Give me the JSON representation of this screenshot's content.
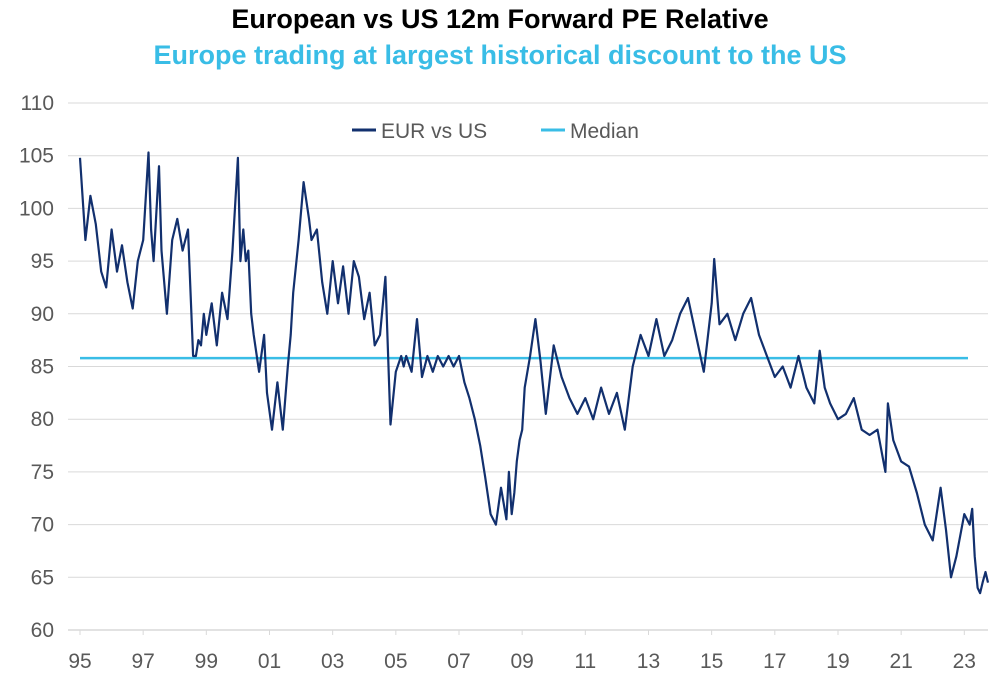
{
  "colors": {
    "series": "#12306e",
    "median": "#39bde6",
    "subtitle": "#39bde6",
    "grid": "#d9d9d9",
    "axis_text": "#595959"
  },
  "chart_data": {
    "type": "line",
    "title": "European vs US 12m Forward PE Relative",
    "subtitle": "Europe trading at largest historical discount to the US",
    "xlabel": "",
    "ylabel": "",
    "xlim": [
      1995,
      2023.75
    ],
    "ylim": [
      60,
      110
    ],
    "x_ticks": [
      "95",
      "97",
      "99",
      "01",
      "03",
      "05",
      "07",
      "09",
      "11",
      "13",
      "15",
      "17",
      "19",
      "21",
      "23"
    ],
    "y_ticks": [
      "60",
      "65",
      "70",
      "75",
      "80",
      "85",
      "90",
      "95",
      "100",
      "105",
      "110"
    ],
    "grid": "horizontal",
    "legend_position": "top-center",
    "series": [
      {
        "name": "EUR vs US",
        "x": [
          1995.0,
          1995.17,
          1995.33,
          1995.5,
          1995.67,
          1995.83,
          1996.0,
          1996.17,
          1996.33,
          1996.5,
          1996.67,
          1996.83,
          1997.0,
          1997.17,
          1997.25,
          1997.33,
          1997.5,
          1997.58,
          1997.75,
          1997.92,
          1998.08,
          1998.25,
          1998.42,
          1998.58,
          1998.67,
          1998.75,
          1998.83,
          1998.92,
          1999.0,
          1999.17,
          1999.33,
          1999.5,
          1999.67,
          1999.83,
          2000.0,
          2000.08,
          2000.17,
          2000.25,
          2000.33,
          2000.42,
          2000.5,
          2000.67,
          2000.83,
          2000.92,
          2001.08,
          2001.25,
          2001.42,
          2001.58,
          2001.67,
          2001.75,
          2001.92,
          2002.08,
          2002.25,
          2002.33,
          2002.5,
          2002.67,
          2002.83,
          2003.0,
          2003.17,
          2003.33,
          2003.5,
          2003.67,
          2003.83,
          2004.0,
          2004.17,
          2004.33,
          2004.5,
          2004.67,
          2004.83,
          2005.0,
          2005.17,
          2005.25,
          2005.33,
          2005.5,
          2005.67,
          2005.83,
          2006.0,
          2006.17,
          2006.33,
          2006.5,
          2006.67,
          2006.83,
          2007.0,
          2007.17,
          2007.33,
          2007.5,
          2007.67,
          2007.83,
          2008.0,
          2008.17,
          2008.33,
          2008.5,
          2008.58,
          2008.67,
          2008.75,
          2008.83,
          2008.92,
          2009.0,
          2009.08,
          2009.25,
          2009.42,
          2009.58,
          2009.75,
          2010.0,
          2010.25,
          2010.5,
          2010.75,
          2011.0,
          2011.25,
          2011.5,
          2011.75,
          2012.0,
          2012.25,
          2012.5,
          2012.75,
          2013.0,
          2013.25,
          2013.5,
          2013.75,
          2014.0,
          2014.25,
          2014.5,
          2014.75,
          2015.0,
          2015.08,
          2015.25,
          2015.5,
          2015.75,
          2016.0,
          2016.25,
          2016.5,
          2016.75,
          2017.0,
          2017.25,
          2017.5,
          2017.75,
          2018.0,
          2018.25,
          2018.42,
          2018.58,
          2018.75,
          2019.0,
          2019.25,
          2019.5,
          2019.75,
          2020.0,
          2020.25,
          2020.5,
          2020.58,
          2020.75,
          2021.0,
          2021.25,
          2021.5,
          2021.75,
          2022.0,
          2022.25,
          2022.42,
          2022.58,
          2022.75,
          2023.0,
          2023.17,
          2023.25,
          2023.33,
          2023.42,
          2023.5,
          2023.58,
          2023.67,
          2023.75
        ],
        "values": [
          104.8,
          97.0,
          101.2,
          98.5,
          94.0,
          92.5,
          98.0,
          94.0,
          96.5,
          93.0,
          90.5,
          95.0,
          97.0,
          105.3,
          98.0,
          95.0,
          104.0,
          96.0,
          90.0,
          97.0,
          99.0,
          96.0,
          98.0,
          86.0,
          86.0,
          87.5,
          87.0,
          90.0,
          88.0,
          91.0,
          87.0,
          92.0,
          89.5,
          96.0,
          104.8,
          95.0,
          98.0,
          95.0,
          96.0,
          90.0,
          88.0,
          84.5,
          88.0,
          82.5,
          79.0,
          83.5,
          79.0,
          85.0,
          88.0,
          92.0,
          97.0,
          102.5,
          99.0,
          97.0,
          98.0,
          93.0,
          90.0,
          95.0,
          91.0,
          94.5,
          90.0,
          95.0,
          93.5,
          89.5,
          92.0,
          87.0,
          88.0,
          93.5,
          79.5,
          84.5,
          86.0,
          85.0,
          86.0,
          84.5,
          89.5,
          84.0,
          86.0,
          84.5,
          86.0,
          85.0,
          86.0,
          85.0,
          86.0,
          83.5,
          82.0,
          80.0,
          77.5,
          74.5,
          71.0,
          70.0,
          73.5,
          70.5,
          75.0,
          71.0,
          73.0,
          76.0,
          78.0,
          79.0,
          83.0,
          86.0,
          89.5,
          85.5,
          80.5,
          87.0,
          84.0,
          82.0,
          80.5,
          82.0,
          80.0,
          83.0,
          80.5,
          82.5,
          79.0,
          85.0,
          88.0,
          86.0,
          89.5,
          86.0,
          87.5,
          90.0,
          91.5,
          88.0,
          84.5,
          91.0,
          95.2,
          89.0,
          90.0,
          87.5,
          90.0,
          91.5,
          88.0,
          86.0,
          84.0,
          85.0,
          83.0,
          86.0,
          83.0,
          81.5,
          86.5,
          83.0,
          81.5,
          80.0,
          80.5,
          82.0,
          79.0,
          78.5,
          79.0,
          75.0,
          81.5,
          78.0,
          76.0,
          75.5,
          73.0,
          70.0,
          68.5,
          73.5,
          69.5,
          65.0,
          67.0,
          71.0,
          70.0,
          71.5,
          67.0,
          64.0,
          63.5,
          64.5,
          65.5,
          64.5
        ]
      }
    ],
    "median": {
      "name": "Median",
      "value": 85.8
    }
  }
}
